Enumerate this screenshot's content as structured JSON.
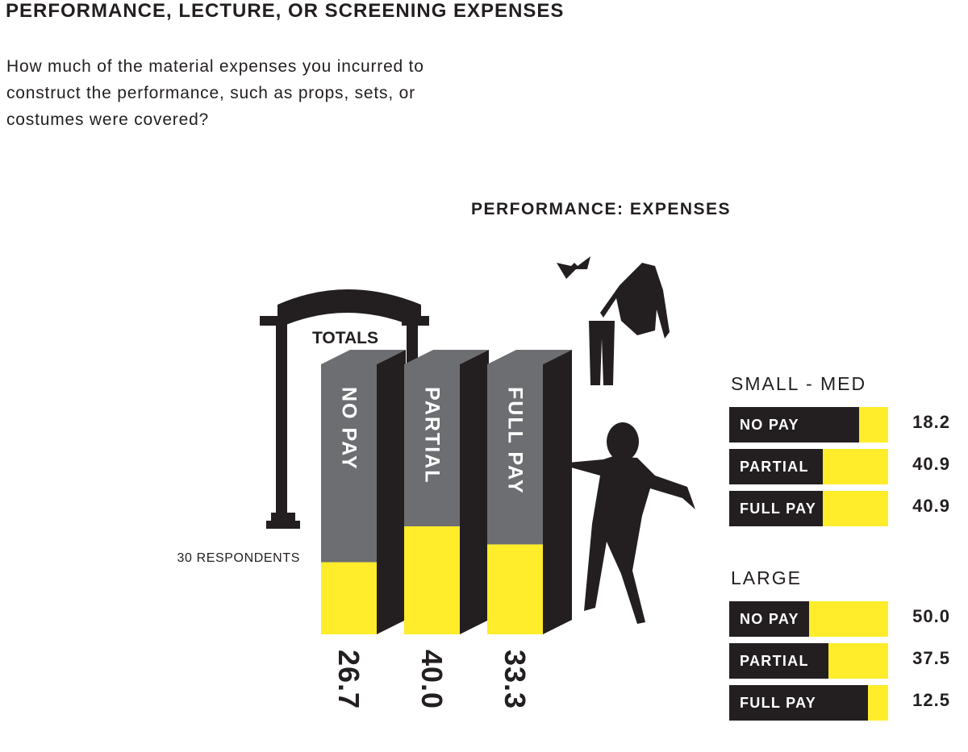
{
  "page": {
    "title": "PERFORMANCE, LECTURE, OR SCREENING EXPENSES",
    "question": "How much of the material expenses you incurred to construct the performance, such as props, sets, or costumes were covered?"
  },
  "colors": {
    "dark": "#231f20",
    "gray": "#6d6e71",
    "yellow": "#ffec2a"
  },
  "icons": [
    "arch-icon",
    "bowtie-icon",
    "hoodie-icon",
    "pants-icon",
    "dancer-silhouette-icon"
  ],
  "chart_data": [
    {
      "type": "bar",
      "title": "PERFORMANCE: EXPENSES",
      "subtitle": "TOTALS",
      "note": "30 RESPONDENTS",
      "categories": [
        "NO PAY",
        "PARTIAL",
        "FULL PAY"
      ],
      "values": [
        26.7,
        40.0,
        33.3
      ],
      "value_labels": [
        "26.7",
        "40.0",
        "33.3"
      ],
      "ylim": [
        0,
        100
      ]
    },
    {
      "type": "bar",
      "orientation": "horizontal",
      "title": "SMALL - MED",
      "categories": [
        "NO PAY",
        "PARTIAL",
        "FULL PAY"
      ],
      "values": [
        18.2,
        40.9,
        40.9
      ],
      "value_labels": [
        "18.2",
        "40.9",
        "40.9"
      ],
      "xlim": [
        0,
        100
      ]
    },
    {
      "type": "bar",
      "orientation": "horizontal",
      "title": "LARGE",
      "categories": [
        "NO PAY",
        "PARTIAL",
        "FULL PAY"
      ],
      "values": [
        50.0,
        37.5,
        12.5
      ],
      "value_labels": [
        "50.0",
        "37.5",
        "12.5"
      ],
      "xlim": [
        0,
        100
      ]
    }
  ]
}
